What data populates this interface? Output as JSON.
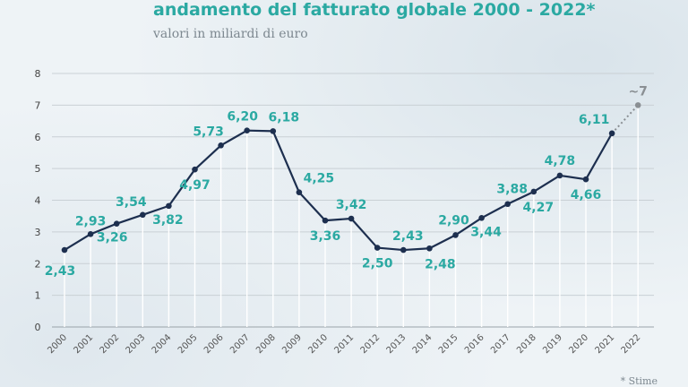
{
  "title": "andamento del fatturato globale 2000 - 2022*",
  "subtitle": "valori in miliardi di euro",
  "footnote": "* Stime",
  "colors": {
    "line": "#1d2f4f",
    "labels": "#2ba9a2",
    "estimate": "#8a8f93",
    "grid": "#c9d0d5"
  },
  "chart_data": {
    "type": "line",
    "title": "andamento del fatturato globale 2000 - 2022*",
    "subtitle": "valori in miliardi di euro",
    "ylim": [
      0,
      8
    ],
    "yticks": [
      0,
      1,
      2,
      3,
      4,
      5,
      6,
      7,
      8
    ],
    "grid": true,
    "categories": [
      "2000",
      "2001",
      "2002",
      "2003",
      "2004",
      "2005",
      "2006",
      "2007",
      "2008",
      "2009",
      "2010",
      "2011",
      "2012",
      "2013",
      "2014",
      "2015",
      "2016",
      "2017",
      "2018",
      "2019",
      "2020",
      "2021",
      "2022"
    ],
    "values": [
      2.43,
      2.93,
      3.26,
      3.54,
      3.82,
      4.97,
      5.73,
      6.2,
      6.18,
      4.25,
      3.36,
      3.42,
      2.5,
      2.43,
      2.48,
      2.9,
      3.44,
      3.88,
      4.27,
      4.78,
      4.66,
      6.11,
      7
    ],
    "labels": [
      "2,43",
      "2,93",
      "3,26",
      "3,54",
      "3,82",
      "4,97",
      "5,73",
      "6,20",
      "6,18",
      "4,25",
      "3,36",
      "3,42",
      "2,50",
      "2,43",
      "2,48",
      "2,90",
      "3,44",
      "3,88",
      "4,27",
      "4,78",
      "4,66",
      "6,11",
      "~7"
    ],
    "estimated_from_index": 22
  }
}
